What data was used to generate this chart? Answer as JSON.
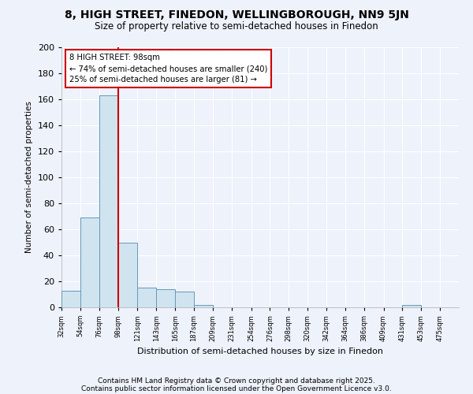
{
  "title": "8, HIGH STREET, FINEDON, WELLINGBOROUGH, NN9 5JN",
  "subtitle": "Size of property relative to semi-detached houses in Finedon",
  "xlabel": "Distribution of semi-detached houses by size in Finedon",
  "ylabel": "Number of semi-detached properties",
  "bins": [
    32,
    54,
    76,
    98,
    121,
    143,
    165,
    187,
    209,
    231,
    254,
    276,
    298,
    320,
    342,
    364,
    386,
    409,
    431,
    453,
    475
  ],
  "bar_heights": [
    13,
    69,
    163,
    50,
    15,
    14,
    12,
    2,
    0,
    0,
    0,
    0,
    0,
    0,
    0,
    0,
    0,
    0,
    2,
    0,
    0
  ],
  "bar_color": "#d0e4f0",
  "bar_edge_color": "#6699bb",
  "property_line_x": 98,
  "property_line_color": "#cc0000",
  "annotation_line1": "8 HIGH STREET: 98sqm",
  "annotation_line2": "← 74% of semi-detached houses are smaller (240)",
  "annotation_line3": "25% of semi-detached houses are larger (81) →",
  "annotation_box_color": "#ffffff",
  "annotation_box_edge_color": "#cc0000",
  "ylim": [
    0,
    200
  ],
  "yticks": [
    0,
    20,
    40,
    60,
    80,
    100,
    120,
    140,
    160,
    180,
    200
  ],
  "tick_labels": [
    "32sqm",
    "54sqm",
    "76sqm",
    "98sqm",
    "121sqm",
    "143sqm",
    "165sqm",
    "187sqm",
    "209sqm",
    "231sqm",
    "254sqm",
    "276sqm",
    "298sqm",
    "320sqm",
    "342sqm",
    "364sqm",
    "386sqm",
    "409sqm",
    "431sqm",
    "453sqm",
    "475sqm"
  ],
  "background_color": "#eef2fb",
  "grid_color": "#ffffff",
  "footnote1": "Contains HM Land Registry data © Crown copyright and database right 2025.",
  "footnote2": "Contains public sector information licensed under the Open Government Licence v3.0."
}
